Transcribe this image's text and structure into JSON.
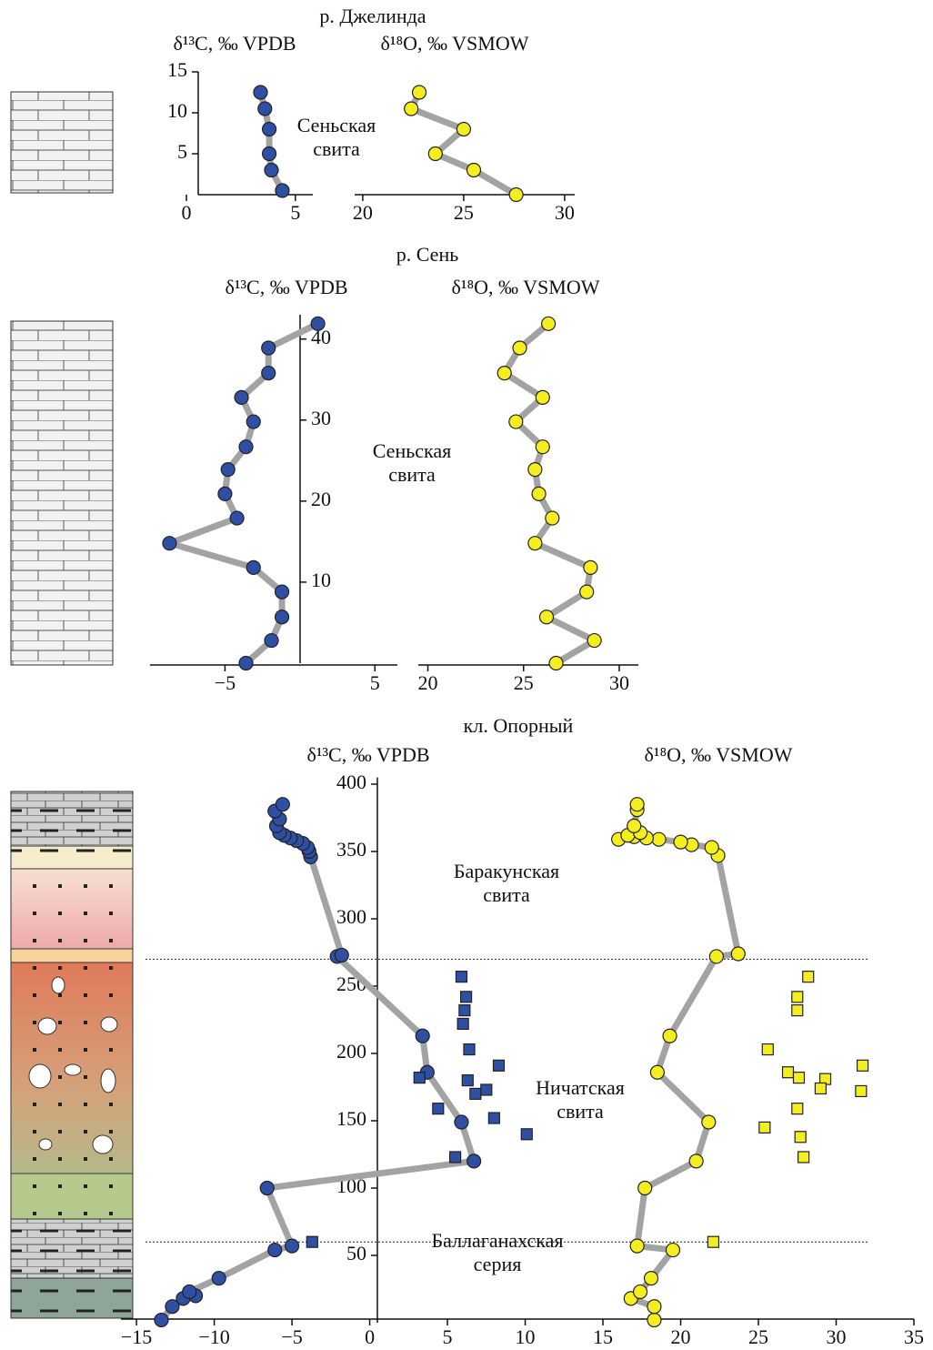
{
  "chart_data": [
    {
      "type": "line",
      "title": "р. Джелинда",
      "xlabel": "δ¹³C, ‰ VPDB",
      "x": [
        4.4,
        3.9,
        3.8,
        3.8,
        3.6,
        3.4
      ],
      "y": [
        0.5,
        3,
        5,
        8,
        10.5,
        12.5
      ],
      "marker": "circle",
      "color": "#2f4fa3",
      "line_color": "#a3a3a3",
      "xlim": [
        0,
        5.8
      ],
      "xticks": [
        0,
        5
      ],
      "ylim": [
        0,
        15
      ],
      "yticks": [
        5,
        10,
        15
      ],
      "annotations": [
        {
          "lines": [
            "Сеньская",
            "свита"
          ]
        }
      ]
    },
    {
      "type": "line",
      "xlabel": "δ¹⁸O, ‰ VSMOW",
      "x": [
        27.6,
        25.5,
        23.6,
        25.0,
        22.4,
        22.8
      ],
      "y": [
        0,
        3,
        5,
        8,
        10.5,
        12.5
      ],
      "marker": "circle",
      "color": "#f4ee1e",
      "line_color": "#a3a3a3",
      "xlim": [
        19.6,
        30.5
      ],
      "xticks": [
        20,
        25,
        30
      ],
      "ylim": [
        0,
        15
      ]
    },
    {
      "type": "line",
      "title": "р. Сень",
      "xlabel": "δ¹³C, ‰ VPDB",
      "x": [
        -3.6,
        -1.9,
        -1.2,
        -1.2,
        -3.1,
        -8.7,
        -4.2,
        -5.0,
        -4.8,
        -3.6,
        -3.1,
        -3.9,
        -2.1,
        -2.1,
        1.2
      ],
      "y": [
        0,
        2.8,
        5.7,
        8.8,
        11.8,
        14.8,
        17.9,
        20.9,
        23.9,
        26.7,
        29.8,
        32.8,
        35.8,
        38.9,
        41.9
      ],
      "marker": "circle",
      "color": "#2f4fa3",
      "line_color": "#a3a3a3",
      "xlim": [
        -10,
        6.5
      ],
      "xticks": [
        {
          "value": -5,
          "label": "−5"
        },
        5
      ],
      "ylim": [
        0,
        43
      ],
      "yticks": [
        10,
        20,
        30,
        40
      ],
      "annotations": [
        {
          "lines": [
            "Сеньская",
            "свита"
          ]
        }
      ]
    },
    {
      "type": "line",
      "xlabel": "δ¹⁸O, ‰ VSMOW",
      "x": [
        26.7,
        28.7,
        26.2,
        28.3,
        28.5,
        25.6,
        26.5,
        25.8,
        25.6,
        26.0,
        24.6,
        26.0,
        24.0,
        24.8,
        26.3
      ],
      "y": [
        0,
        2.8,
        5.7,
        8.8,
        11.8,
        14.8,
        17.9,
        20.9,
        23.9,
        26.7,
        29.8,
        32.8,
        35.8,
        38.9,
        41.9
      ],
      "marker": "circle",
      "color": "#f4ee1e",
      "line_color": "#a3a3a3",
      "xlim": [
        19.5,
        31
      ],
      "xticks": [
        20,
        25,
        30
      ],
      "ylim": [
        0,
        43
      ]
    },
    {
      "type": "line",
      "title": "кл. Опорный",
      "xlabels": [
        "δ¹³C, ‰ VPDB",
        "δ¹⁸O, ‰ VSMOW"
      ],
      "xlim": [
        -16,
        35
      ],
      "xticks": [
        {
          "value": -15,
          "label": "−15"
        },
        {
          "value": -10,
          "label": "−10"
        },
        {
          "value": -5,
          "label": "−5"
        },
        0,
        5,
        10,
        15,
        20,
        25,
        30,
        35
      ],
      "ylim": [
        0,
        405
      ],
      "yticks": [
        50,
        100,
        150,
        200,
        250,
        300,
        350,
        400
      ],
      "boundaries": [
        270,
        60
      ],
      "line_color": "#a3a3a3",
      "annotations": [
        {
          "lines": [
            "Баракунская",
            "свита"
          ]
        },
        {
          "lines": [
            "Ничатская",
            "свита"
          ]
        },
        {
          "lines": [
            "Баллаганахская",
            "серия"
          ]
        }
      ],
      "series": [
        {
          "marker": "circle",
          "color": "#2f4fa3",
          "line": true,
          "x": [
            -13.4,
            -12.7,
            -12.0,
            -11.2,
            -11.6,
            -9.7,
            -6.1,
            -5.0,
            -6.6,
            6.7,
            5.9,
            3.7,
            3.4,
            -2.1,
            -1.8,
            -3.8,
            -3.9,
            -4.0,
            -4.3,
            -4.7,
            -5.1,
            -5.5,
            -5.8,
            -6.0,
            -5.8,
            -6.1,
            -5.6
          ],
          "y": [
            2,
            12,
            18,
            20,
            23,
            33,
            54,
            57,
            100,
            120,
            149,
            186,
            213,
            272,
            273,
            346,
            350,
            353,
            356,
            358,
            360,
            362,
            364,
            369,
            374,
            380,
            385
          ]
        },
        {
          "marker": "square",
          "color": "#2f4fa3",
          "line": false,
          "x": [
            5.9,
            6.2,
            6.1,
            6.0,
            6.4,
            8.3,
            3.2,
            6.3,
            7.5,
            6.8,
            4.4,
            8.0,
            10.1,
            5.5,
            -3.7
          ],
          "y": [
            257,
            242,
            232,
            222,
            203,
            191,
            182,
            180,
            173,
            170,
            159,
            152,
            140,
            123,
            60
          ]
        },
        {
          "marker": "circle",
          "color": "#f4ee1e",
          "line": true,
          "x": [
            18.3,
            18.3,
            16.8,
            17.4,
            18.1,
            19.5,
            17.2,
            17.7,
            21.0,
            21.8,
            18.5,
            19.3,
            22.3,
            23.7,
            22.4,
            22.0,
            20.7,
            20.0,
            18.6,
            17.8,
            17.0,
            16.0,
            16.6,
            17.4,
            17.0,
            17.2,
            17.2
          ],
          "y": [
            2,
            12,
            18,
            23,
            33,
            54,
            57,
            100,
            120,
            149,
            186,
            213,
            272,
            274,
            347,
            353,
            355,
            357,
            359,
            360,
            361,
            359,
            362,
            364,
            369,
            381,
            385
          ]
        },
        {
          "marker": "square",
          "color": "#f4ee1e",
          "line": false,
          "x": [
            28.2,
            27.5,
            27.5,
            25.6,
            31.7,
            26.9,
            27.6,
            29.3,
            29.0,
            31.6,
            27.5,
            25.4,
            27.7,
            27.9,
            22.1
          ],
          "y": [
            257,
            242,
            232,
            203,
            191,
            186,
            182,
            181,
            174,
            172,
            159,
            145,
            138,
            123,
            60
          ]
        }
      ]
    }
  ]
}
